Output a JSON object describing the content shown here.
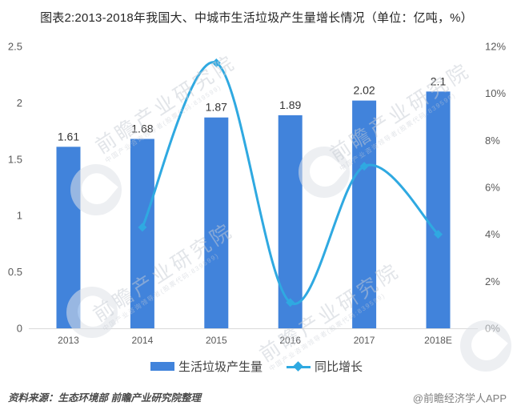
{
  "title": "图表2:2013-2018年我国大、中城市生活垃圾产生量增长情况（单位：亿吨，%）",
  "chart_data": {
    "type": "bar+line",
    "title": "图表2:2013-2018年我国大、中城市生活垃圾产生量增长情况（单位：亿吨，%）",
    "categories": [
      "2013",
      "2014",
      "2015",
      "2016",
      "2017",
      "2018E"
    ],
    "series": [
      {
        "name": "生活垃圾产生量",
        "type": "bar",
        "yaxis": "left",
        "unit": "亿吨",
        "color": "#4183DB",
        "values": [
          1.61,
          1.68,
          1.87,
          1.89,
          2.02,
          2.1
        ],
        "labels": [
          "1.61",
          "1.68",
          "1.87",
          "1.89",
          "2.02",
          "2.1"
        ]
      },
      {
        "name": "同比增长",
        "type": "line",
        "yaxis": "right",
        "unit": "%",
        "color": "#2FA9E1",
        "marker": "diamond",
        "values": [
          null,
          4.3,
          11.3,
          1.1,
          6.9,
          4.0
        ]
      }
    ],
    "left_axis": {
      "min": 0,
      "max": 2.5,
      "ticks": [
        "0",
        "0.5",
        "1",
        "1.5",
        "2",
        "2.5"
      ],
      "unit": "亿吨"
    },
    "right_axis": {
      "min": 0,
      "max": 12,
      "ticks": [
        "0%",
        "2%",
        "4%",
        "6%",
        "8%",
        "10%",
        "12%"
      ],
      "unit": "%"
    },
    "legend_position": "bottom",
    "grid": false
  },
  "footer": {
    "source": "资料来源：生态环境部 前瞻产业研究院整理",
    "brand": "@前瞻经济学人APP"
  },
  "watermark": {
    "text": "前瞻产业研究院",
    "subtext": "中国产业咨询领导者(股票代码:839599)"
  },
  "colors": {
    "bar": "#4183DB",
    "line": "#2FA9E1",
    "axis_line": "#d9d9d9",
    "tick_text": "#595959",
    "title_text": "#262626"
  }
}
